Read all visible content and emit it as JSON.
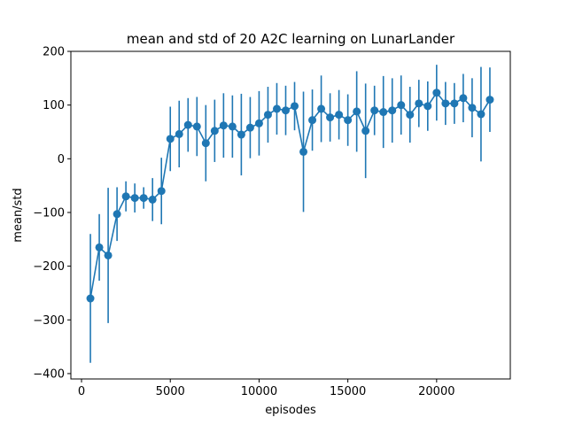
{
  "chart_data": {
    "type": "line",
    "title": "mean and std of 20 A2C learning on LunarLander",
    "xlabel": "episodes",
    "ylabel": "mean/std",
    "xlim": [
      -600,
      24150
    ],
    "ylim": [
      -410,
      200
    ],
    "xticks": [
      0,
      5000,
      10000,
      15000,
      20000
    ],
    "xtick_labels": [
      "0",
      "5000",
      "10000",
      "15000",
      "20000"
    ],
    "yticks": [
      -400,
      -300,
      -200,
      -100,
      0,
      100,
      200
    ],
    "ytick_labels": [
      "−400",
      "−300",
      "−200",
      "−100",
      "0",
      "100",
      "200"
    ],
    "grid": false,
    "legend": "none",
    "colors": {
      "series": "#1f77b4",
      "axes": "#000000"
    },
    "series": [
      {
        "x": [
          500,
          1000,
          1500,
          2000,
          2500,
          3000,
          3500,
          4000,
          4500,
          5000,
          5500,
          6000,
          6500,
          7000,
          7500,
          8000,
          8500,
          9000,
          9500,
          10000,
          10500,
          11000,
          11500,
          12000,
          12500,
          13000,
          13500,
          14000,
          14500,
          15000,
          15500,
          16000,
          16500,
          17000,
          17500,
          18000,
          18500,
          19000,
          19500,
          20000,
          20500,
          21000,
          21500,
          22000,
          22500,
          23000
        ],
        "mean": [
          -260,
          -165,
          -180,
          -103,
          -70,
          -73,
          -73,
          -76,
          -60,
          37,
          46,
          63,
          60,
          29,
          52,
          62,
          60,
          45,
          58,
          66,
          82,
          93,
          90,
          98,
          13,
          72,
          93,
          77,
          82,
          72,
          88,
          52,
          90,
          87,
          90,
          100,
          82,
          103,
          98,
          123,
          103,
          103,
          113,
          95,
          83,
          110
        ],
        "std": [
          120,
          62,
          126,
          50,
          28,
          27,
          20,
          40,
          62,
          60,
          62,
          50,
          55,
          71,
          58,
          60,
          58,
          76,
          57,
          60,
          52,
          48,
          46,
          45,
          112,
          57,
          62,
          45,
          46,
          48,
          75,
          88,
          46,
          67,
          60,
          55,
          52,
          44,
          46,
          52,
          40,
          38,
          45,
          55,
          88,
          60
        ]
      }
    ]
  }
}
